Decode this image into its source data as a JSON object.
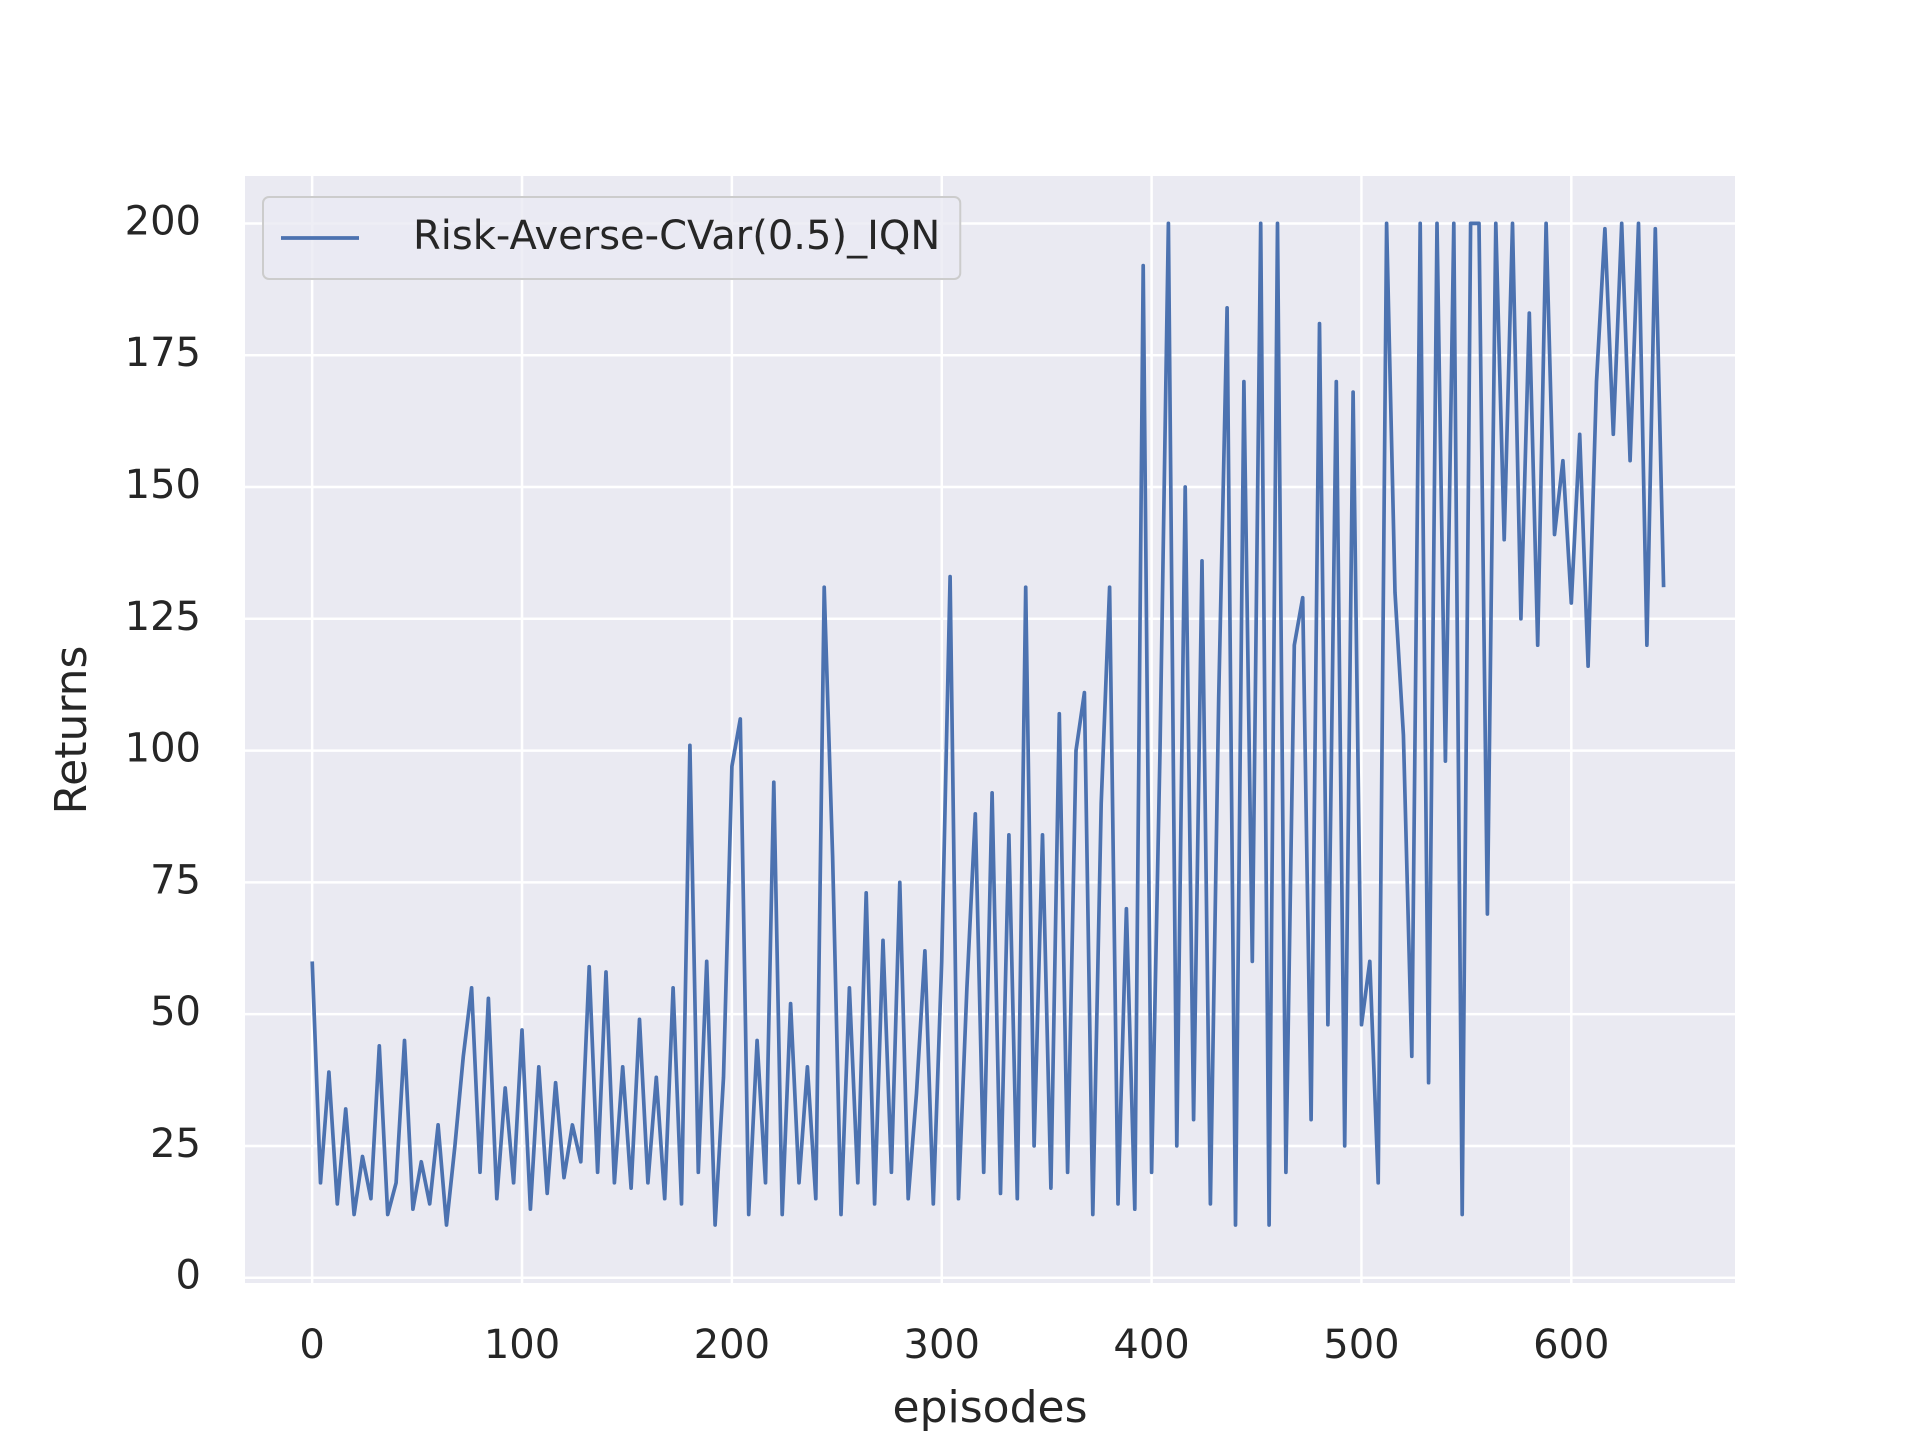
{
  "chart_data": {
    "type": "line",
    "xlabel": "episodes",
    "ylabel": "Returns",
    "x": [
      0,
      4,
      8,
      12,
      16,
      20,
      24,
      28,
      32,
      36,
      40,
      44,
      48,
      52,
      56,
      60,
      64,
      68,
      72,
      76,
      80,
      84,
      88,
      92,
      96,
      100,
      104,
      108,
      112,
      116,
      120,
      124,
      128,
      132,
      136,
      140,
      144,
      148,
      152,
      156,
      160,
      164,
      168,
      172,
      176,
      180,
      184,
      188,
      192,
      196,
      200,
      204,
      208,
      212,
      216,
      220,
      224,
      228,
      232,
      236,
      240,
      244,
      248,
      252,
      256,
      260,
      264,
      268,
      272,
      276,
      280,
      284,
      288,
      292,
      296,
      300,
      304,
      308,
      312,
      316,
      320,
      324,
      328,
      332,
      336,
      340,
      344,
      348,
      352,
      356,
      360,
      364,
      368,
      372,
      376,
      380,
      384,
      388,
      392,
      396,
      400,
      404,
      408,
      412,
      416,
      420,
      424,
      428,
      432,
      436,
      440,
      444,
      448,
      452,
      456,
      460,
      464,
      468,
      472,
      476,
      480,
      484,
      488,
      492,
      496,
      500,
      504,
      508,
      512,
      516,
      520,
      524,
      528,
      532,
      536,
      540,
      544,
      548,
      552,
      556,
      560,
      564,
      568,
      572,
      576,
      580,
      584,
      588,
      592,
      596,
      600,
      604,
      608,
      612,
      616,
      620,
      624,
      628,
      632,
      636,
      640,
      644
    ],
    "series": [
      {
        "name": "Risk-Averse-CVar(0.5)_IQN",
        "color": "#4c72b0",
        "values": [
          60,
          18,
          39,
          14,
          32,
          12,
          23,
          15,
          44,
          12,
          18,
          45,
          13,
          22,
          14,
          29,
          10,
          25,
          42,
          55,
          20,
          53,
          15,
          36,
          18,
          47,
          13,
          40,
          16,
          37,
          19,
          29,
          22,
          59,
          20,
          58,
          18,
          40,
          17,
          49,
          18,
          38,
          15,
          55,
          14,
          101,
          20,
          60,
          10,
          38,
          97,
          106,
          12,
          45,
          18,
          94,
          12,
          52,
          18,
          40,
          15,
          131,
          80,
          12,
          55,
          18,
          73,
          14,
          64,
          20,
          75,
          15,
          35,
          62,
          14,
          60,
          133,
          15,
          55,
          88,
          20,
          92,
          16,
          84,
          15,
          131,
          25,
          84,
          17,
          107,
          20,
          100,
          111,
          12,
          90,
          131,
          14,
          70,
          13,
          192,
          20,
          100,
          200,
          25,
          150,
          30,
          136,
          14,
          110,
          184,
          10,
          170,
          60,
          200,
          10,
          200,
          20,
          120,
          129,
          30,
          181,
          48,
          170,
          25,
          168,
          48,
          60,
          18,
          200,
          130,
          103,
          42,
          200,
          37,
          200,
          98,
          200,
          12,
          200,
          200,
          69,
          200,
          140,
          200,
          125,
          183,
          120,
          200,
          141,
          155,
          128,
          160,
          116,
          170,
          199,
          160,
          200,
          155,
          200,
          120,
          199,
          131
        ]
      }
    ],
    "xlim": [
      -32,
      678
    ],
    "ylim": [
      -1,
      209
    ],
    "xticks": [
      0,
      100,
      200,
      300,
      400,
      500,
      600
    ],
    "yticks": [
      0,
      25,
      50,
      75,
      100,
      125,
      150,
      175,
      200
    ],
    "grid": true,
    "legend": "upper left"
  }
}
